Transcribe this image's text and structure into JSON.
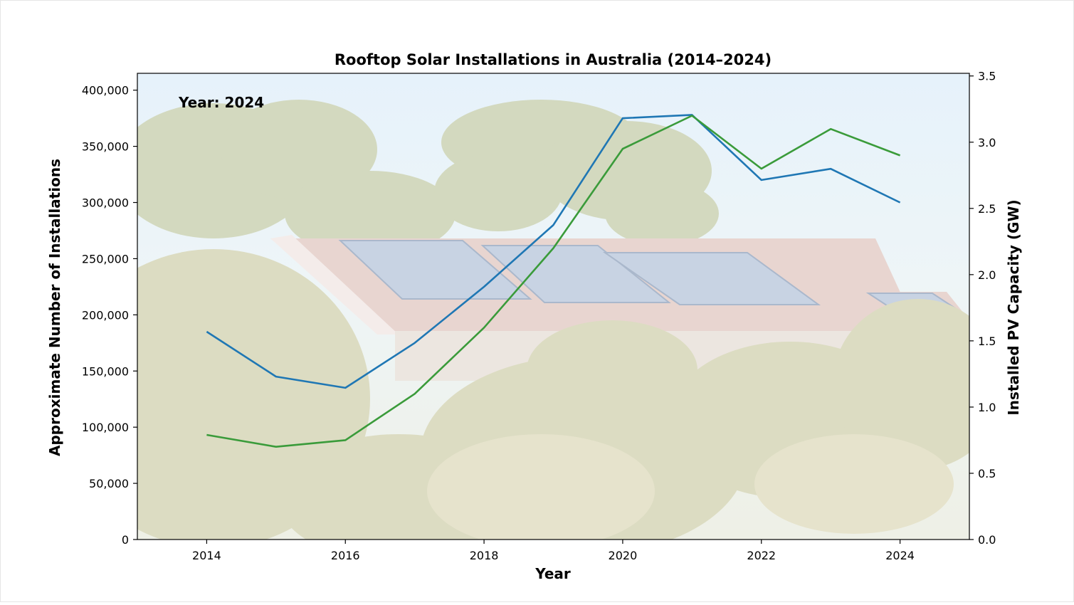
{
  "chart_data": {
    "type": "line",
    "title": "Rooftop Solar Installations in Australia (2014–2024)",
    "xlabel": "Year",
    "ylabel_left": "Approximate Number of Installations",
    "ylabel_right": "Installed PV Capacity (GW)",
    "annotation": "Year: 2024",
    "xlim": [
      2013,
      2025
    ],
    "ylim_left": [
      0,
      415000
    ],
    "ylim_right": [
      0,
      3.52
    ],
    "x_ticks": [
      "2014",
      "2016",
      "2018",
      "2020",
      "2022",
      "2024"
    ],
    "y_left_ticks": [
      "0",
      "50,000",
      "100,000",
      "150,000",
      "200,000",
      "250,000",
      "300,000",
      "350,000",
      "400,000"
    ],
    "y_right_ticks": [
      "0.0",
      "0.5",
      "1.0",
      "1.5",
      "2.0",
      "2.5",
      "3.0",
      "3.5"
    ],
    "x": [
      2014,
      2015,
      2016,
      2017,
      2018,
      2019,
      2020,
      2021,
      2022,
      2023,
      2024
    ],
    "series": [
      {
        "axis": "left",
        "color": "#1f77b4",
        "values": [
          185000,
          145000,
          135000,
          175000,
          225000,
          280000,
          375000,
          378000,
          320000,
          330000,
          300000
        ]
      },
      {
        "axis": "right",
        "color": "#3a9b3a",
        "values": [
          0.79,
          0.7,
          0.75,
          1.1,
          1.6,
          2.2,
          2.95,
          3.2,
          2.8,
          3.1,
          2.9
        ]
      }
    ],
    "grid": false,
    "background": "faded photo of a house roof with solar panels among trees"
  }
}
